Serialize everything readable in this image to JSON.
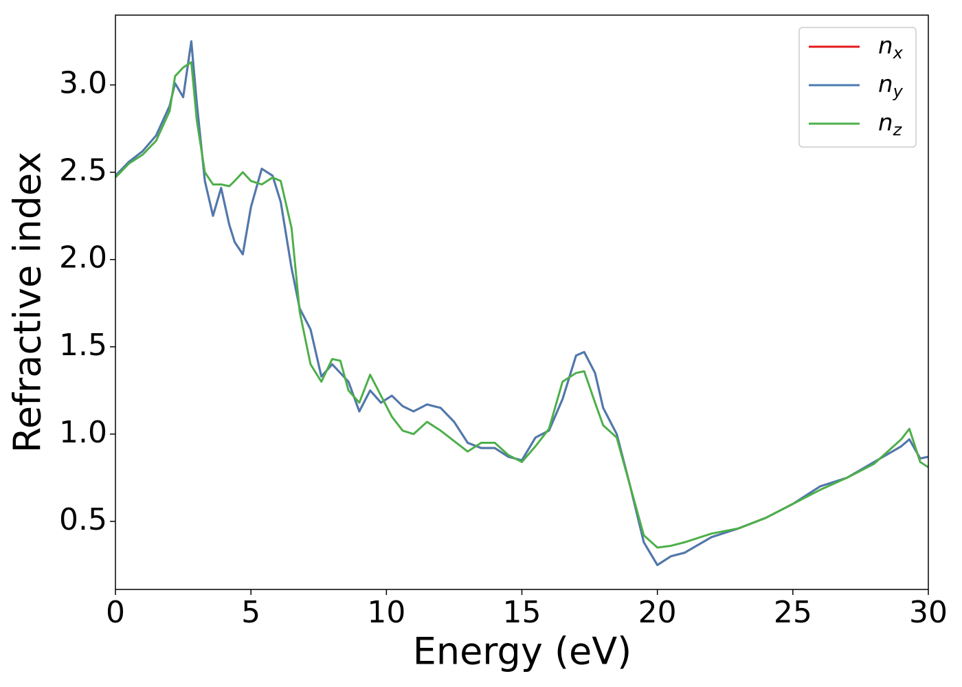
{
  "chart_data": {
    "type": "line",
    "xlabel": "Energy (eV)",
    "ylabel": "Refractive index",
    "x": [
      0,
      0.5,
      1,
      1.5,
      2,
      2.2,
      2.5,
      2.8,
      3,
      3.3,
      3.6,
      3.9,
      4.2,
      4.4,
      4.7,
      5,
      5.4,
      5.8,
      6.1,
      6.5,
      6.8,
      7.2,
      7.6,
      8,
      8.3,
      8.6,
      9,
      9.4,
      9.8,
      10.2,
      10.6,
      11,
      11.5,
      12,
      12.5,
      13,
      13.5,
      14,
      14.5,
      15,
      15.5,
      16,
      16.5,
      17,
      17.3,
      17.7,
      18,
      18.5,
      19,
      19.5,
      20,
      20.5,
      21,
      22,
      23,
      24,
      25,
      26,
      27,
      28,
      29,
      29.3,
      29.7,
      30
    ],
    "series": [
      {
        "name": "nx",
        "color": "#e41a1c",
        "values": [
          2.48,
          2.56,
          2.62,
          2.71,
          2.88,
          3.01,
          2.93,
          3.25,
          2.9,
          2.45,
          2.25,
          2.41,
          2.2,
          2.1,
          2.03,
          2.3,
          2.52,
          2.48,
          2.33,
          1.95,
          1.72,
          1.6,
          1.33,
          1.4,
          1.35,
          1.3,
          1.13,
          1.25,
          1.18,
          1.22,
          1.16,
          1.13,
          1.17,
          1.15,
          1.07,
          0.95,
          0.92,
          0.92,
          0.87,
          0.85,
          0.98,
          1.02,
          1.2,
          1.45,
          1.47,
          1.35,
          1.15,
          1.0,
          0.7,
          0.38,
          0.25,
          0.3,
          0.32,
          0.41,
          0.46,
          0.52,
          0.6,
          0.7,
          0.75,
          0.84,
          0.93,
          0.97,
          0.86,
          0.87
        ]
      },
      {
        "name": "ny",
        "color": "#4a7bb0",
        "values": [
          2.48,
          2.56,
          2.62,
          2.71,
          2.88,
          3.01,
          2.93,
          3.25,
          2.9,
          2.45,
          2.25,
          2.41,
          2.2,
          2.1,
          2.03,
          2.3,
          2.52,
          2.48,
          2.33,
          1.95,
          1.72,
          1.6,
          1.33,
          1.4,
          1.35,
          1.3,
          1.13,
          1.25,
          1.18,
          1.22,
          1.16,
          1.13,
          1.17,
          1.15,
          1.07,
          0.95,
          0.92,
          0.92,
          0.87,
          0.85,
          0.98,
          1.02,
          1.2,
          1.45,
          1.47,
          1.35,
          1.15,
          1.0,
          0.7,
          0.38,
          0.25,
          0.3,
          0.32,
          0.41,
          0.46,
          0.52,
          0.6,
          0.7,
          0.75,
          0.84,
          0.93,
          0.97,
          0.86,
          0.87
        ]
      },
      {
        "name": "nz",
        "color": "#4daf4a",
        "values": [
          2.47,
          2.55,
          2.6,
          2.68,
          2.85,
          3.05,
          3.1,
          3.13,
          2.8,
          2.5,
          2.43,
          2.43,
          2.42,
          2.45,
          2.5,
          2.45,
          2.43,
          2.47,
          2.45,
          2.18,
          1.7,
          1.4,
          1.3,
          1.43,
          1.42,
          1.25,
          1.18,
          1.34,
          1.22,
          1.1,
          1.02,
          1.0,
          1.07,
          1.02,
          0.96,
          0.9,
          0.95,
          0.95,
          0.88,
          0.84,
          0.93,
          1.03,
          1.3,
          1.35,
          1.36,
          1.18,
          1.05,
          0.98,
          0.7,
          0.42,
          0.35,
          0.36,
          0.38,
          0.43,
          0.46,
          0.52,
          0.6,
          0.68,
          0.75,
          0.83,
          0.97,
          1.03,
          0.84,
          0.81
        ]
      }
    ],
    "xlim": [
      0,
      30
    ],
    "xticks": [
      0,
      5,
      10,
      15,
      20,
      25,
      30
    ],
    "ylim": [
      0.11,
      3.4
    ],
    "yticks": [
      0.5,
      {
        "value": 1.0,
        "label": "1.0"
      },
      1.5,
      {
        "value": 2.0,
        "label": "2.0"
      },
      2.5,
      {
        "value": 3.0,
        "label": "3.0"
      }
    ],
    "grid": false,
    "legend": "upper right"
  }
}
